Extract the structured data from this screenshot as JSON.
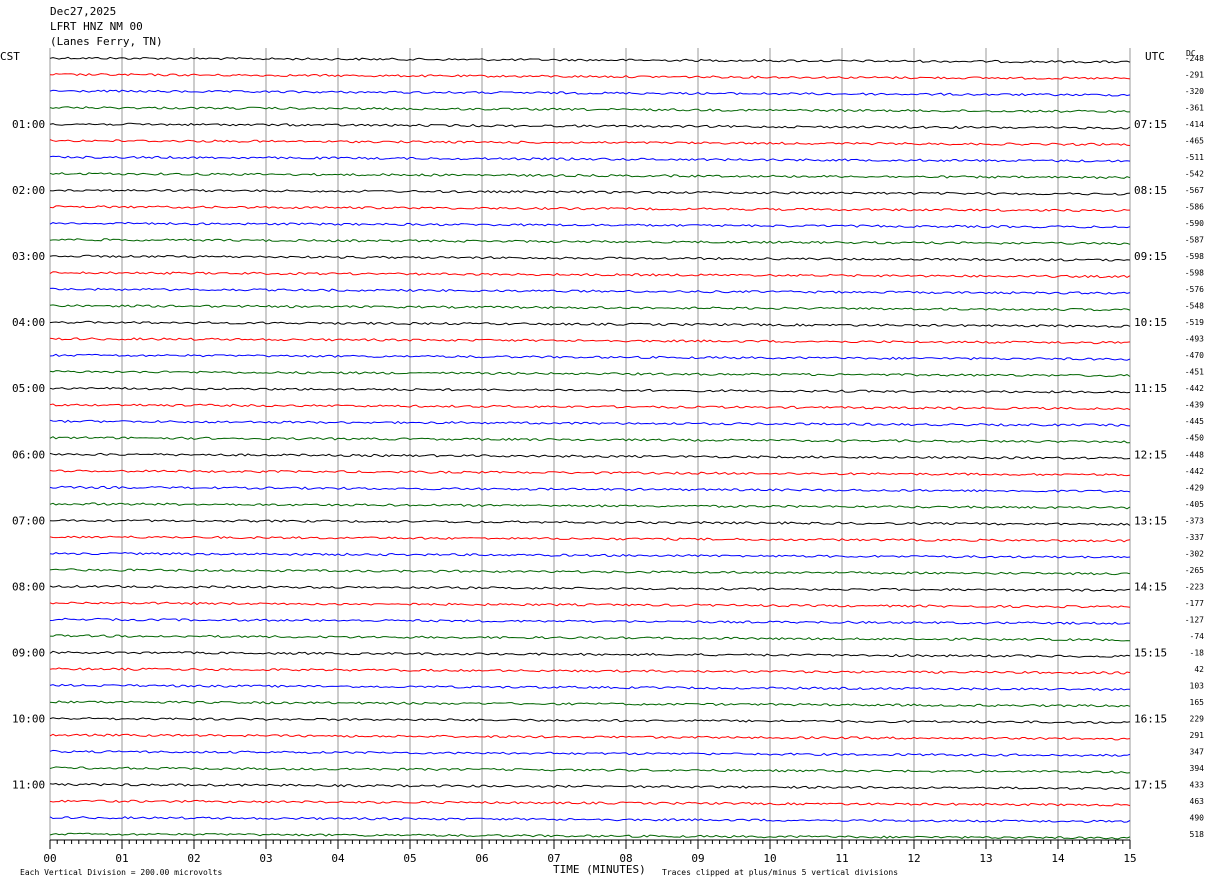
{
  "header": {
    "date": "Dec27,2025",
    "station": "LFRT HNZ NM 00",
    "location": "(Lanes Ferry, TN)"
  },
  "left_axis_label": "CST",
  "right_axis_label": "UTC",
  "dc_label": "DC",
  "footer": {
    "scale_note": "Each Vertical Division =  200.00 microvolts",
    "xlabel": "TIME (MINUTES)",
    "clip_note": "Traces clipped at plus/minus 5 vertical divisions"
  },
  "colors": {
    "trace_cycle": [
      "#000000",
      "#ff0000",
      "#0000ff",
      "#006400"
    ],
    "grid": "#999999"
  },
  "chart_data": {
    "type": "line",
    "title": "",
    "xlabel": "TIME (MINUTES)",
    "ylabel": "",
    "xlim": [
      0,
      15
    ],
    "x_ticks": [
      "00",
      "01",
      "02",
      "03",
      "04",
      "05",
      "06",
      "07",
      "08",
      "09",
      "10",
      "11",
      "12",
      "13",
      "14",
      "15"
    ],
    "trace_count": 48,
    "trace_interval_minutes": 15,
    "left_time_labels": [
      {
        "trace": 4,
        "label": "01:00"
      },
      {
        "trace": 8,
        "label": "02:00"
      },
      {
        "trace": 12,
        "label": "03:00"
      },
      {
        "trace": 16,
        "label": "04:00"
      },
      {
        "trace": 20,
        "label": "05:00"
      },
      {
        "trace": 24,
        "label": "06:00"
      },
      {
        "trace": 28,
        "label": "07:00"
      },
      {
        "trace": 32,
        "label": "08:00"
      },
      {
        "trace": 36,
        "label": "09:00"
      },
      {
        "trace": 40,
        "label": "10:00"
      },
      {
        "trace": 44,
        "label": "11:00"
      }
    ],
    "right_time_labels": [
      {
        "trace": 4,
        "label": "07:15"
      },
      {
        "trace": 8,
        "label": "08:15"
      },
      {
        "trace": 12,
        "label": "09:15"
      },
      {
        "trace": 16,
        "label": "10:15"
      },
      {
        "trace": 20,
        "label": "11:15"
      },
      {
        "trace": 24,
        "label": "12:15"
      },
      {
        "trace": 28,
        "label": "13:15"
      },
      {
        "trace": 32,
        "label": "14:15"
      },
      {
        "trace": 36,
        "label": "15:15"
      },
      {
        "trace": 40,
        "label": "16:15"
      },
      {
        "trace": 44,
        "label": "17:15"
      }
    ],
    "dc_offsets": [
      "-248",
      "-291",
      "-320",
      "-361",
      "-414",
      "-465",
      "-511",
      "-542",
      "-567",
      "-586",
      "-590",
      "-587",
      "-598",
      "-598",
      "-576",
      "-548",
      "-519",
      "-493",
      "-470",
      "-451",
      "-442",
      "-439",
      "-445",
      "-450",
      "-448",
      "-442",
      "-429",
      "-405",
      "-373",
      "-337",
      "-302",
      "-265",
      "-223",
      "-177",
      "-127",
      "-74",
      "-18",
      "42",
      "103",
      "165",
      "229",
      "291",
      "347",
      "394",
      "433",
      "463",
      "490",
      "518"
    ],
    "grid": true,
    "legend": "none"
  }
}
